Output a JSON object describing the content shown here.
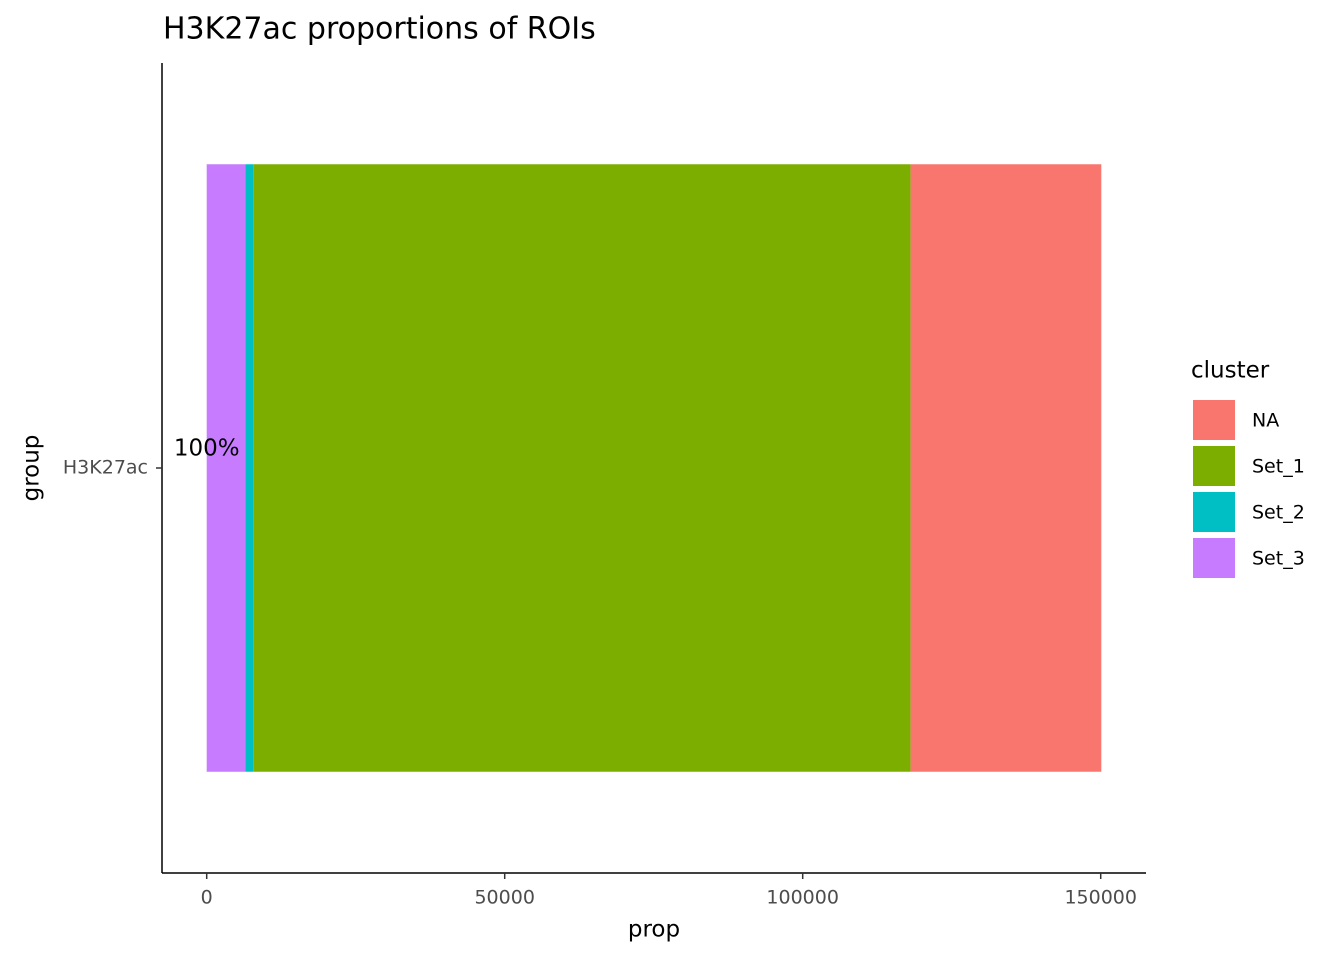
{
  "chart_data": {
    "type": "stacked_bar_horizontal",
    "title": "H3K27ac proportions of ROIs",
    "x_label": "prop",
    "y_label": "group",
    "categories": [
      "H3K27ac"
    ],
    "series": [
      {
        "name": "NA",
        "color": "#f8766d",
        "values": [
          32000
        ]
      },
      {
        "name": "Set_1",
        "color": "#7cae00",
        "values": [
          110300
        ]
      },
      {
        "name": "Set_2",
        "color": "#00bfc4",
        "values": [
          1300
        ]
      },
      {
        "name": "Set_3",
        "color": "#c77cff",
        "values": [
          6500
        ]
      }
    ],
    "legend_title": "cluster",
    "legend_position": "right",
    "annotation": "100%",
    "xlim": [
      -7500,
      157600
    ],
    "xticks": [
      0,
      50000,
      100000,
      150000
    ],
    "grid": false
  }
}
